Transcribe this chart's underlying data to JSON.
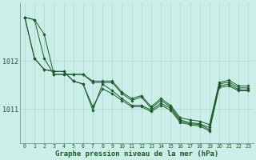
{
  "background_color": "#cceee8",
  "grid_color": "#aad8d0",
  "line_color": "#1a5c28",
  "marker_color": "#1a5c28",
  "xlabel": "Graphe pression niveau de la mer (hPa)",
  "xlabel_fontsize": 6.5,
  "ylabel_ticks": [
    1011,
    1012
  ],
  "xlim": [
    -0.5,
    23.5
  ],
  "ylim": [
    1010.3,
    1013.2
  ],
  "series": [
    [
      1012.9,
      1012.85,
      1012.05,
      1011.72,
      1011.72,
      1011.72,
      1011.72,
      1011.58,
      1011.58,
      1011.58,
      1011.35,
      1011.22,
      1011.28,
      1011.05,
      1011.22,
      1011.08,
      1010.82,
      1010.78,
      1010.75,
      1010.68,
      1011.55,
      1011.6,
      1011.48,
      1011.48
    ],
    [
      1012.9,
      1012.85,
      1012.55,
      1011.72,
      1011.72,
      1011.72,
      1011.72,
      1011.55,
      1011.55,
      1011.55,
      1011.32,
      1011.18,
      1011.25,
      1011.02,
      1011.18,
      1011.05,
      1010.78,
      1010.72,
      1010.7,
      1010.62,
      1011.52,
      1011.56,
      1011.44,
      1011.44
    ],
    [
      1012.9,
      1012.05,
      1011.82,
      1011.78,
      1011.78,
      1011.58,
      1011.52,
      1010.98,
      1011.52,
      1011.38,
      1011.22,
      1011.08,
      1011.08,
      1010.98,
      1011.12,
      1011.02,
      1010.75,
      1010.7,
      1010.68,
      1010.58,
      1011.48,
      1011.52,
      1011.4,
      1011.4
    ],
    [
      1012.9,
      1012.05,
      1011.82,
      1011.78,
      1011.78,
      1011.58,
      1011.52,
      1011.05,
      1011.42,
      1011.32,
      1011.18,
      1011.05,
      1011.05,
      1010.95,
      1011.08,
      1010.98,
      1010.72,
      1010.68,
      1010.65,
      1010.55,
      1011.45,
      1011.48,
      1011.38,
      1011.38
    ]
  ],
  "xtick_fontsize": 4.8,
  "ytick_fontsize": 6.0,
  "figsize": [
    3.2,
    2.0
  ],
  "dpi": 100
}
